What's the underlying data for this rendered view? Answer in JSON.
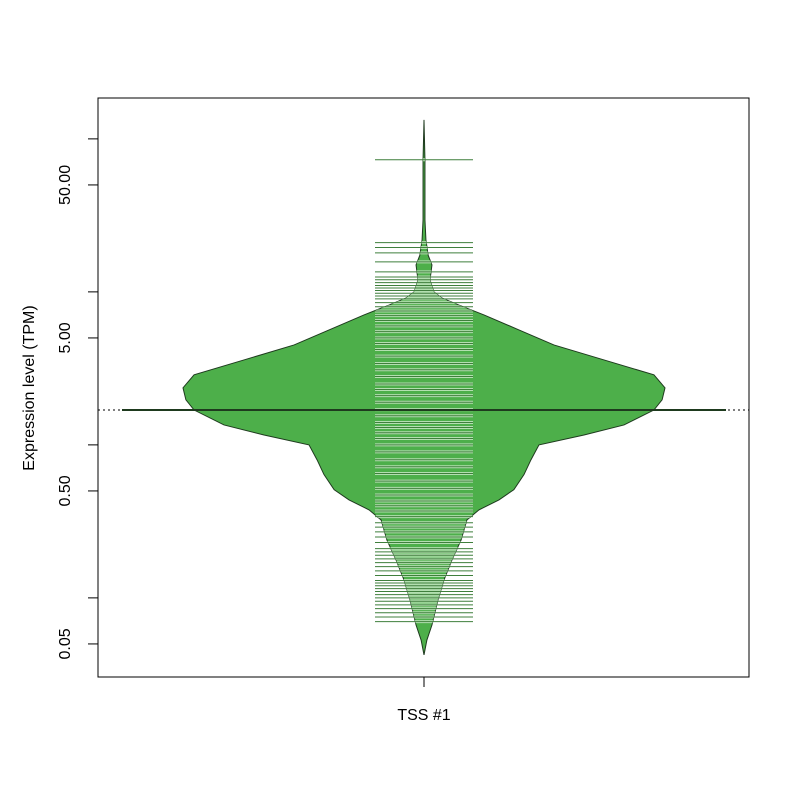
{
  "chart_data": {
    "type": "beanplot",
    "y_label": "Expression level (TPM)",
    "categories": [
      "TSS #1"
    ],
    "ylog": true,
    "ylim": [
      0.0304,
      185
    ],
    "yticks": [
      {
        "value": 0.05,
        "label": "0.05"
      },
      {
        "value": 0.5,
        "label": "0.50"
      },
      {
        "value": 5,
        "label": "5.00"
      },
      {
        "value": 50,
        "label": "50.00"
      }
    ],
    "yticks_minor": [
      0.1,
      1,
      10,
      100
    ],
    "color": "#4daf4a",
    "line_color_inside": "#b3dfb0",
    "line_color_outside": "#3f7f3c",
    "mean": 1.69,
    "density": {
      "y": [
        0.0424,
        0.053,
        0.0665,
        0.097,
        0.131,
        0.177,
        0.239,
        0.323,
        0.376,
        0.437,
        0.51,
        0.64,
        0.8,
        1.0,
        1.16,
        1.35,
        1.69,
        1.97,
        2.36,
        2.87,
        3.59,
        4.5,
        5.64,
        7.07,
        8.2,
        9.1,
        10.0,
        11.96,
        15.0,
        17.4,
        21.9,
        29.5,
        50,
        72.8,
        133
      ],
      "width": [
        0,
        0.012,
        0.033,
        0.058,
        0.083,
        0.116,
        0.154,
        0.178,
        0.228,
        0.311,
        0.373,
        0.415,
        0.444,
        0.477,
        0.664,
        0.83,
        0.954,
        0.988,
        1.0,
        0.954,
        0.747,
        0.539,
        0.394,
        0.249,
        0.145,
        0.075,
        0.041,
        0.025,
        0.033,
        0.017,
        0.008,
        0.004,
        0.004,
        0.004,
        0
      ]
    },
    "observations": [
      73,
      21,
      19.5,
      18,
      15.7,
      13.5,
      12.5,
      12,
      11.5,
      11,
      10.6,
      10.2,
      9.8,
      9.4,
      9,
      8.5,
      8,
      7.5,
      7,
      6.5,
      6,
      5.5,
      5,
      4.6,
      4.2,
      3.8,
      3.4,
      3.1,
      2.8,
      2.5,
      2.3,
      2.1,
      1.9,
      1.7,
      1.55,
      1.4,
      1.3,
      1.2,
      1.1,
      1.0,
      0.9,
      0.8,
      0.72,
      0.65,
      0.58,
      0.52,
      0.47,
      0.43,
      0.4,
      0.37,
      0.34,
      0.31,
      0.29,
      0.27,
      0.25,
      0.23,
      0.21,
      0.2,
      0.19,
      0.18,
      0.17,
      0.16,
      0.15,
      0.14,
      0.13,
      0.125,
      0.12,
      0.115,
      0.11,
      0.105,
      0.1,
      0.095,
      0.09,
      0.085,
      0.08,
      0.075,
      0.07
    ]
  }
}
